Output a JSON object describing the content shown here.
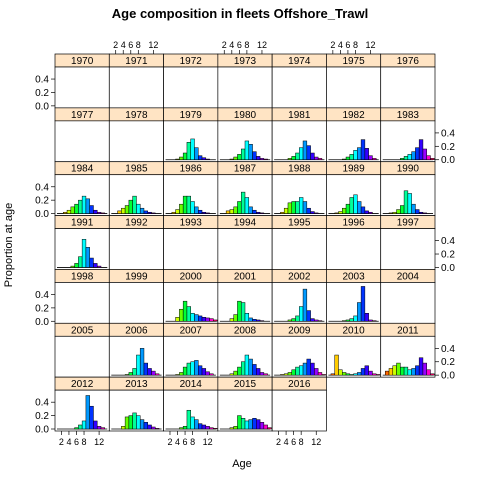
{
  "chart_data": {
    "type": "bar",
    "layout": "lattice panels",
    "title": "Age composition in fleets Offshore_Trawl",
    "xlabel": "Age",
    "ylabel": "Proportion at age",
    "x": [
      1,
      2,
      3,
      4,
      5,
      6,
      7,
      8,
      9,
      10,
      11,
      12,
      13,
      14
    ],
    "x_tick_labels": [
      "2",
      "4",
      "6",
      "8",
      "12"
    ],
    "x_ticks": [
      2,
      4,
      6,
      8,
      12
    ],
    "xlim": [
      0.3,
      14.7
    ],
    "y_tick_labels": [
      "0.0",
      "0.2",
      "0.4"
    ],
    "y_ticks": [
      0,
      0.2,
      0.4
    ],
    "ylim": [
      0,
      0.55
    ],
    "age_colors": [
      "#ff0000",
      "#ff6600",
      "#ffcc00",
      "#ccff00",
      "#66ff00",
      "#00ff33",
      "#00ff99",
      "#00ffff",
      "#0099ff",
      "#0033ff",
      "#3300ff",
      "#9900ff",
      "#ff00cc",
      "#ff0066"
    ],
    "strip_color": "#ffe4c4",
    "panels": [
      {
        "year": "1970",
        "values": []
      },
      {
        "year": "1971",
        "values": []
      },
      {
        "year": "1972",
        "values": []
      },
      {
        "year": "1973",
        "values": []
      },
      {
        "year": "1974",
        "values": []
      },
      {
        "year": "1975",
        "values": []
      },
      {
        "year": "1976",
        "values": []
      },
      {
        "year": "1977",
        "values": []
      },
      {
        "year": "1978",
        "values": []
      },
      {
        "year": "1979",
        "values": [
          0,
          0,
          0,
          0.01,
          0.04,
          0.1,
          0.26,
          0.31,
          0.18,
          0.06,
          0.03,
          0.01,
          0,
          0
        ]
      },
      {
        "year": "1980",
        "values": [
          0,
          0,
          0,
          0.01,
          0.04,
          0.08,
          0.16,
          0.28,
          0.23,
          0.12,
          0.05,
          0.02,
          0.01,
          0
        ]
      },
      {
        "year": "1981",
        "values": [
          0,
          0,
          0,
          0,
          0.02,
          0.05,
          0.1,
          0.18,
          0.28,
          0.21,
          0.1,
          0.04,
          0.02,
          0
        ]
      },
      {
        "year": "1982",
        "values": [
          0,
          0,
          0,
          0,
          0.01,
          0.04,
          0.08,
          0.14,
          0.18,
          0.3,
          0.17,
          0.06,
          0.02,
          0
        ]
      },
      {
        "year": "1983",
        "values": [
          0,
          0,
          0,
          0,
          0,
          0.02,
          0.05,
          0.08,
          0.12,
          0.18,
          0.3,
          0.16,
          0.06,
          0.02
        ]
      },
      {
        "year": "1984",
        "values": [
          0,
          0,
          0.02,
          0.05,
          0.1,
          0.14,
          0.2,
          0.26,
          0.22,
          0.12,
          0.05,
          0.02,
          0.01,
          0
        ]
      },
      {
        "year": "1985",
        "values": [
          0,
          0,
          0.04,
          0.08,
          0.12,
          0.2,
          0.26,
          0.14,
          0.08,
          0.04,
          0.02,
          0.01,
          0,
          0
        ]
      },
      {
        "year": "1986",
        "values": [
          0,
          0,
          0.02,
          0.06,
          0.14,
          0.26,
          0.26,
          0.18,
          0.1,
          0.05,
          0.02,
          0.01,
          0,
          0
        ]
      },
      {
        "year": "1987",
        "values": [
          0,
          0,
          0.04,
          0.06,
          0.1,
          0.18,
          0.32,
          0.24,
          0.1,
          0.05,
          0.02,
          0.01,
          0,
          0
        ]
      },
      {
        "year": "1988",
        "values": [
          0,
          0,
          0.02,
          0.08,
          0.16,
          0.18,
          0.18,
          0.24,
          0.18,
          0.08,
          0.03,
          0.01,
          0,
          0
        ]
      },
      {
        "year": "1989",
        "values": [
          0,
          0,
          0.01,
          0.03,
          0.08,
          0.14,
          0.24,
          0.28,
          0.18,
          0.1,
          0.04,
          0.02,
          0,
          0
        ]
      },
      {
        "year": "1990",
        "values": [
          0,
          0,
          0.01,
          0.02,
          0.06,
          0.12,
          0.34,
          0.3,
          0.14,
          0.06,
          0.02,
          0.01,
          0,
          0
        ]
      },
      {
        "year": "1991",
        "values": [
          0,
          0,
          0,
          0,
          0.02,
          0.06,
          0.16,
          0.42,
          0.3,
          0.14,
          0.06,
          0.02,
          0,
          0
        ]
      },
      {
        "year": "1992",
        "values": []
      },
      {
        "year": "1993",
        "values": []
      },
      {
        "year": "1994",
        "values": []
      },
      {
        "year": "1995",
        "values": []
      },
      {
        "year": "1996",
        "values": []
      },
      {
        "year": "1997",
        "values": []
      },
      {
        "year": "1998",
        "values": []
      },
      {
        "year": "1999",
        "values": []
      },
      {
        "year": "2000",
        "values": [
          0,
          0,
          0,
          0.06,
          0.18,
          0.3,
          0.22,
          0.12,
          0.1,
          0.08,
          0.06,
          0.05,
          0.04,
          0.02
        ]
      },
      {
        "year": "2001",
        "values": [
          0,
          0,
          0,
          0.04,
          0.1,
          0.3,
          0.28,
          0.12,
          0.05,
          0.03,
          0.02,
          0.01,
          0,
          0
        ]
      },
      {
        "year": "2002",
        "values": [
          0,
          0,
          0,
          0,
          0.02,
          0.04,
          0.08,
          0.22,
          0.48,
          0.16,
          0.04,
          0.02,
          0.01,
          0
        ]
      },
      {
        "year": "2003",
        "values": [
          0,
          0,
          0,
          0,
          0.01,
          0.02,
          0.04,
          0.08,
          0.28,
          0.52,
          0.12,
          0.02,
          0.01,
          0
        ]
      },
      {
        "year": "2004",
        "values": []
      },
      {
        "year": "2005",
        "values": []
      },
      {
        "year": "2006",
        "values": [
          0,
          0,
          0,
          0,
          0.01,
          0.04,
          0.1,
          0.3,
          0.4,
          0.18,
          0.1,
          0.06,
          0.02,
          0
        ]
      },
      {
        "year": "2007",
        "values": [
          0,
          0,
          0,
          0.01,
          0.04,
          0.12,
          0.18,
          0.2,
          0.22,
          0.14,
          0.1,
          0.05,
          0.02,
          0
        ]
      },
      {
        "year": "2008",
        "values": [
          0,
          0,
          0,
          0.02,
          0.06,
          0.12,
          0.2,
          0.3,
          0.24,
          0.16,
          0.1,
          0.04,
          0.02,
          0
        ]
      },
      {
        "year": "2009",
        "values": [
          0,
          0,
          0.01,
          0.02,
          0.04,
          0.08,
          0.12,
          0.14,
          0.18,
          0.24,
          0.18,
          0.1,
          0.04,
          0.01
        ]
      },
      {
        "year": "2010",
        "values": [
          0,
          0.02,
          0.3,
          0.08,
          0.04,
          0.02,
          0.01,
          0.02,
          0.04,
          0.1,
          0.14,
          0.06,
          0.02,
          0.01
        ]
      },
      {
        "year": "2011",
        "values": [
          0,
          0.06,
          0.1,
          0.14,
          0.18,
          0.12,
          0.12,
          0.08,
          0.1,
          0.14,
          0.26,
          0.18,
          0.08,
          0.02
        ]
      },
      {
        "year": "2012",
        "values": [
          0,
          0,
          0,
          0,
          0,
          0.02,
          0.06,
          0.12,
          0.5,
          0.34,
          0.12,
          0.04,
          0.02,
          0
        ]
      },
      {
        "year": "2013",
        "values": [
          0,
          0,
          0,
          0.04,
          0.18,
          0.2,
          0.24,
          0.2,
          0.14,
          0.1,
          0.06,
          0.03,
          0.01,
          0
        ]
      },
      {
        "year": "2014",
        "values": [
          0,
          0,
          0,
          0,
          0.02,
          0.04,
          0.28,
          0.18,
          0.14,
          0.08,
          0.06,
          0.04,
          0.02,
          0.01
        ]
      },
      {
        "year": "2015",
        "values": [
          0,
          0,
          0,
          0.02,
          0.04,
          0.2,
          0.16,
          0.12,
          0.14,
          0.16,
          0.14,
          0.1,
          0.06,
          0.02
        ]
      },
      {
        "year": "2016",
        "values": []
      }
    ]
  }
}
